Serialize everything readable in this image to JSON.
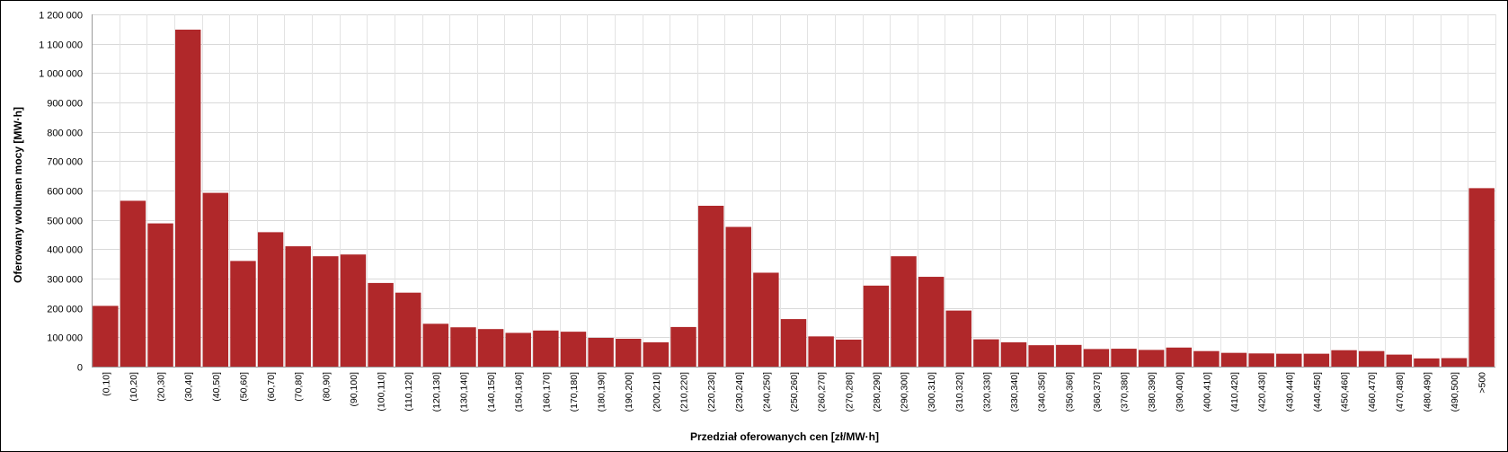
{
  "chart_data": {
    "type": "bar",
    "title": "",
    "xlabel": "Przedział oferowanych cen [zł/MW·h]",
    "ylabel": "Oferowany wolumen mocy [MW·h]",
    "ylim": [
      0,
      1200000
    ],
    "yticks": [
      0,
      100000,
      200000,
      300000,
      400000,
      500000,
      600000,
      700000,
      800000,
      900000,
      1000000,
      1100000,
      1200000
    ],
    "ytick_labels": [
      "0",
      "100 000",
      "200 000",
      "300 000",
      "400 000",
      "500 000",
      "600 000",
      "700 000",
      "800 000",
      "900 000",
      "1 000 000",
      "1 100 000",
      "1 200 000"
    ],
    "grid": true,
    "bar_color": "#b0282a",
    "categories": [
      "(0,10]",
      "(10,20]",
      "(20,30]",
      "(30,40]",
      "(40,50]",
      "(50,60]",
      "(60,70]",
      "(70,80]",
      "(80,90]",
      "(90,100]",
      "(100,110]",
      "(110,120]",
      "(120,130]",
      "(130,140]",
      "(140,150]",
      "(150,160]",
      "(160,170]",
      "(170,180]",
      "(180,190]",
      "(190,200]",
      "(200,210]",
      "(210,220]",
      "(220,230]",
      "(230,240]",
      "(240,250]",
      "(250,260]",
      "(260,270]",
      "(270,280]",
      "(280,290]",
      "(290,300]",
      "(300,310]",
      "(310,320]",
      "(320,330]",
      "(330,340]",
      "(340,350]",
      "(350,360]",
      "(360,370]",
      "(370,380]",
      "(380,390]",
      "(390,400]",
      "(400,410]",
      "(410,420]",
      "(420,430]",
      "(430,440]",
      "(440,450]",
      "(450,460]",
      "(460,470]",
      "(470,480]",
      "(480,490]",
      "(490,500]",
      ">500"
    ],
    "values": [
      207000,
      565000,
      488000,
      1148000,
      592000,
      360000,
      458000,
      410000,
      376000,
      382000,
      285000,
      252000,
      146000,
      134000,
      128000,
      115000,
      123000,
      119000,
      98000,
      95000,
      83000,
      135000,
      548000,
      476000,
      320000,
      162000,
      103000,
      92000,
      276000,
      376000,
      306000,
      191000,
      93000,
      83000,
      73000,
      74000,
      60000,
      61000,
      57000,
      65000,
      53000,
      47000,
      45000,
      44000,
      44000,
      56000,
      53000,
      41000,
      28000,
      29000,
      608000
    ]
  }
}
